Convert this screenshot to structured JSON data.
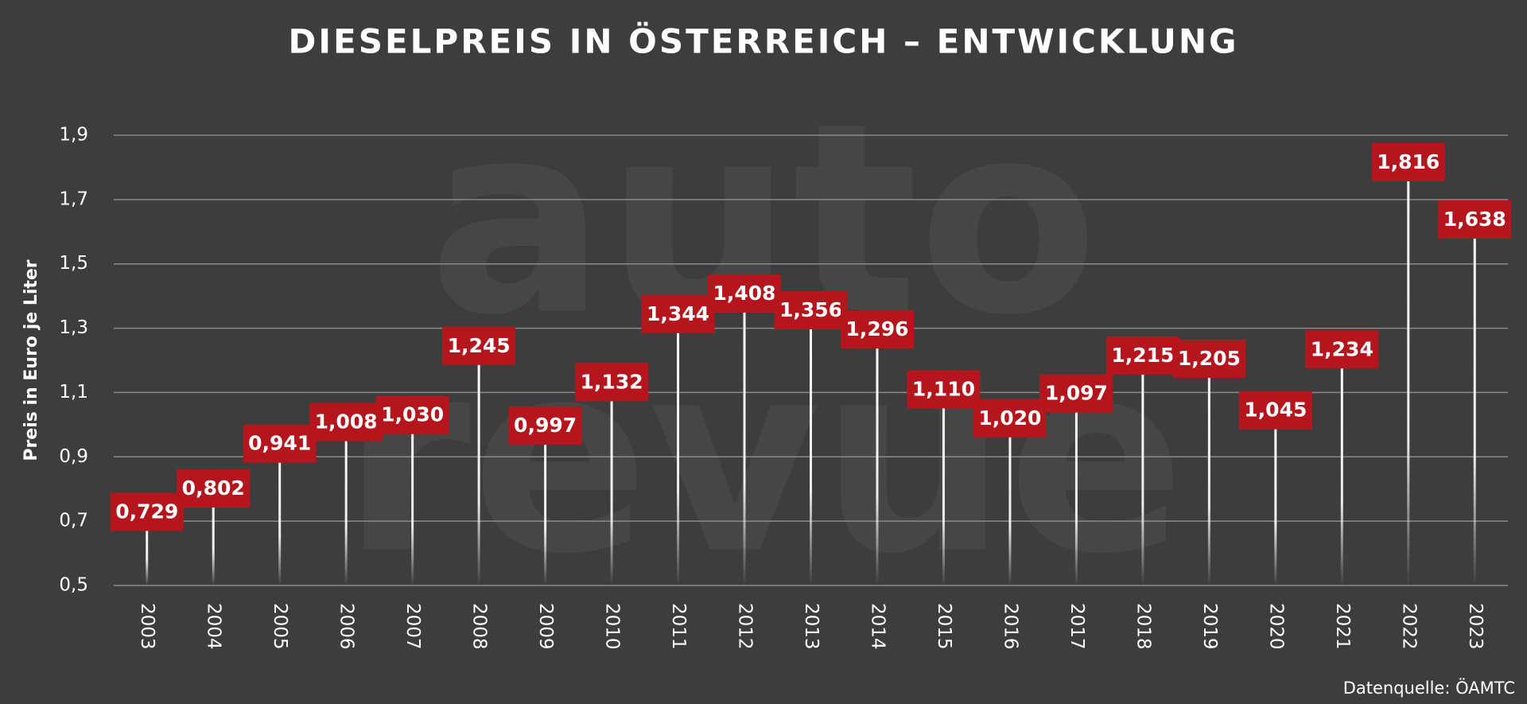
{
  "chart_data": {
    "type": "lollipop",
    "title": "DIESELPREIS IN ÖSTERREICH – ENTWICKLUNG",
    "y_label": "Preis in Euro je Liter",
    "source": "Datenquelle: ÖAMTC",
    "watermark": [
      "auto",
      "revue"
    ],
    "categories": [
      "2003",
      "2004",
      "2005",
      "2006",
      "2007",
      "2008",
      "2009",
      "2010",
      "2011",
      "2012",
      "2013",
      "2014",
      "2015",
      "2016",
      "2017",
      "2018",
      "2019",
      "2020",
      "2021",
      "2022",
      "2023"
    ],
    "values": [
      0.729,
      0.802,
      0.941,
      1.008,
      1.03,
      1.245,
      0.997,
      1.132,
      1.344,
      1.408,
      1.356,
      1.296,
      1.11,
      1.02,
      1.097,
      1.215,
      1.205,
      1.045,
      1.234,
      1.816,
      1.638
    ],
    "value_labels": [
      "0,729",
      "0,802",
      "0,941",
      "1,008",
      "1,030",
      "1,245",
      "0,997",
      "1,132",
      "1,344",
      "1,408",
      "1,356",
      "1,296",
      "1,110",
      "1,020",
      "1,097",
      "1,215",
      "1,205",
      "1,045",
      "1,234",
      "1,816",
      "1,638"
    ],
    "color": "#b5161d",
    "ylim": [
      0.5,
      1.9
    ],
    "yticks": [
      {
        "value": 0.5,
        "label": "0,5"
      },
      {
        "value": 0.7,
        "label": "0,7"
      },
      {
        "value": 0.9,
        "label": "0,9"
      },
      {
        "value": 1.1,
        "label": "1,1"
      },
      {
        "value": 1.3,
        "label": "1,3"
      },
      {
        "value": 1.5,
        "label": "1,5"
      },
      {
        "value": 1.7,
        "label": "1,7"
      },
      {
        "value": 1.9,
        "label": "1,9"
      }
    ],
    "grid": true
  }
}
